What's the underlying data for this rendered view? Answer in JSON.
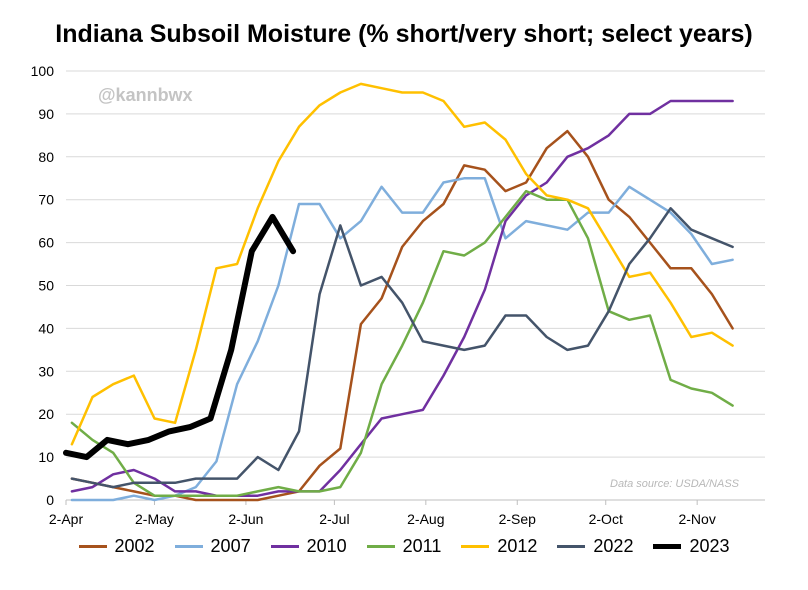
{
  "chart_data": {
    "type": "line",
    "title": "Indiana Subsoil Moisture (% short/very short; select years)",
    "watermark": "@kannbwx",
    "source_note": "Data source: USDA/NASS",
    "xlabel": "",
    "ylabel": "",
    "ylim": [
      0,
      100
    ],
    "yticks": [
      0,
      10,
      20,
      30,
      40,
      50,
      60,
      70,
      80,
      90,
      100
    ],
    "xlim": [
      1,
      238
    ],
    "x_unit": "day of season (day 1 = 2-Apr)",
    "xticks": [
      {
        "label": "2-Apr",
        "day": 1
      },
      {
        "label": "2-May",
        "day": 31
      },
      {
        "label": "2-Jun",
        "day": 62
      },
      {
        "label": "2-Jul",
        "day": 92
      },
      {
        "label": "2-Aug",
        "day": 123
      },
      {
        "label": "2-Sep",
        "day": 154
      },
      {
        "label": "2-Oct",
        "day": 184
      },
      {
        "label": "2-Nov",
        "day": 215
      }
    ],
    "grid": true,
    "legend_position": "bottom",
    "series": [
      {
        "name": "2002",
        "color": "#a6521c",
        "width": 2.5,
        "x": [
          3,
          10,
          17,
          24,
          31,
          38,
          45,
          52,
          59,
          66,
          73,
          80,
          87,
          94,
          101,
          108,
          115,
          122,
          129,
          136,
          143,
          150,
          157,
          164,
          171,
          178,
          185,
          192,
          199,
          206,
          213,
          220,
          227
        ],
        "y": [
          5,
          4,
          3,
          2,
          1,
          1,
          0,
          0,
          0,
          0,
          1,
          2,
          8,
          12,
          41,
          47,
          59,
          65,
          69,
          78,
          77,
          72,
          74,
          82,
          86,
          80,
          70,
          66,
          60,
          54,
          54,
          48,
          40
        ]
      },
      {
        "name": "2007",
        "color": "#7faedc",
        "width": 2.5,
        "x": [
          3,
          10,
          17,
          24,
          31,
          38,
          45,
          52,
          59,
          66,
          73,
          80,
          87,
          94,
          101,
          108,
          115,
          122,
          129,
          136,
          143,
          150,
          157,
          164,
          171,
          178,
          185,
          192,
          199,
          206,
          213,
          220,
          227
        ],
        "y": [
          0,
          0,
          0,
          1,
          0,
          1,
          3,
          9,
          27,
          37,
          50,
          69,
          69,
          61,
          65,
          73,
          67,
          67,
          74,
          75,
          75,
          61,
          65,
          64,
          63,
          67,
          67,
          73,
          70,
          67,
          62,
          55,
          56
        ]
      },
      {
        "name": "2010",
        "color": "#7030a0",
        "width": 2.5,
        "x": [
          3,
          10,
          17,
          24,
          31,
          38,
          45,
          52,
          59,
          66,
          73,
          80,
          87,
          94,
          101,
          108,
          115,
          122,
          129,
          136,
          143,
          150,
          157,
          164,
          171,
          178,
          185,
          192,
          199,
          206,
          213,
          220,
          227
        ],
        "y": [
          2,
          3,
          6,
          7,
          5,
          2,
          2,
          1,
          1,
          1,
          2,
          2,
          2,
          7,
          13,
          19,
          20,
          21,
          29,
          38,
          49,
          65,
          71,
          74,
          80,
          82,
          85,
          90,
          90,
          93,
          93,
          93,
          93
        ]
      },
      {
        "name": "2011",
        "color": "#70ad47",
        "width": 2.5,
        "x": [
          3,
          10,
          17,
          24,
          31,
          38,
          45,
          52,
          59,
          66,
          73,
          80,
          87,
          94,
          101,
          108,
          115,
          122,
          129,
          136,
          143,
          150,
          157,
          164,
          171,
          178,
          185,
          192,
          199,
          206,
          213,
          220,
          227
        ],
        "y": [
          18,
          14,
          11,
          4,
          1,
          1,
          1,
          1,
          1,
          2,
          3,
          2,
          2,
          3,
          11,
          27,
          36,
          46,
          58,
          57,
          60,
          66,
          72,
          70,
          70,
          61,
          44,
          42,
          43,
          28,
          26,
          25,
          22
        ]
      },
      {
        "name": "2012",
        "color": "#ffc000",
        "width": 2.5,
        "x": [
          3,
          10,
          17,
          24,
          31,
          38,
          45,
          52,
          59,
          66,
          73,
          80,
          87,
          94,
          101,
          108,
          115,
          122,
          129,
          136,
          143,
          150,
          157,
          164,
          171,
          178,
          185,
          192,
          199,
          206,
          213,
          220,
          227
        ],
        "y": [
          13,
          24,
          27,
          29,
          19,
          18,
          35,
          54,
          55,
          68,
          79,
          87,
          92,
          95,
          97,
          96,
          95,
          95,
          93,
          87,
          88,
          84,
          76,
          71,
          70,
          68,
          60,
          52,
          53,
          46,
          38,
          39,
          36
        ]
      },
      {
        "name": "2022",
        "color": "#44546a",
        "width": 2.5,
        "x": [
          3,
          10,
          17,
          24,
          31,
          38,
          45,
          52,
          59,
          66,
          73,
          80,
          87,
          94,
          101,
          108,
          115,
          122,
          129,
          136,
          143,
          150,
          157,
          164,
          171,
          178,
          185,
          192,
          199,
          206,
          213,
          220,
          227
        ],
        "y": [
          5,
          4,
          3,
          4,
          4,
          4,
          5,
          5,
          5,
          10,
          7,
          16,
          48,
          64,
          50,
          52,
          46,
          37,
          36,
          35,
          36,
          43,
          43,
          38,
          35,
          36,
          44,
          55,
          61,
          68,
          63,
          61,
          59
        ]
      },
      {
        "name": "2023",
        "color": "#000000",
        "width": 6,
        "x": [
          1,
          8,
          15,
          22,
          29,
          36,
          43,
          50,
          57,
          64,
          71,
          78
        ],
        "y": [
          11,
          10,
          14,
          13,
          14,
          16,
          17,
          19,
          35,
          58,
          66,
          58
        ]
      }
    ]
  }
}
